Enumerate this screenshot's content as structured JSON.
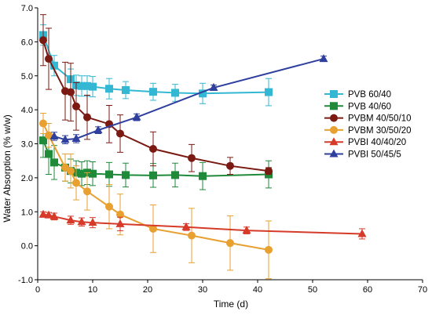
{
  "chart_data": {
    "type": "line",
    "xlabel": "Time  (d)",
    "ylabel": "Water Absorption (% w/w)",
    "xlim": [
      0,
      70
    ],
    "ylim": [
      -1.0,
      7.0
    ],
    "xticks": [
      "0",
      "10",
      "20",
      "30",
      "40",
      "50",
      "60",
      "70"
    ],
    "yticks": [
      "-1.0",
      "0.0",
      "1.0",
      "2.0",
      "3.0",
      "4.0",
      "5.0",
      "6.0",
      "7.0"
    ],
    "grid": false,
    "legend_position": "right",
    "series": [
      {
        "name": "PVB 60/40",
        "color": "#33b7d2",
        "marker": "square",
        "points": [
          {
            "x": 1,
            "y": 6.2,
            "err": 0.3
          },
          {
            "x": 3,
            "y": 5.3,
            "err": 0.3
          },
          {
            "x": 6,
            "y": 4.9,
            "err": 0.3
          },
          {
            "x": 7,
            "y": 4.72,
            "err": 0.3
          },
          {
            "x": 8,
            "y": 4.7,
            "err": 0.3
          },
          {
            "x": 9,
            "y": 4.7,
            "err": 0.3
          },
          {
            "x": 10,
            "y": 4.68,
            "err": 0.3
          },
          {
            "x": 13,
            "y": 4.62,
            "err": 0.3
          },
          {
            "x": 16,
            "y": 4.58,
            "err": 0.25
          },
          {
            "x": 21,
            "y": 4.53,
            "err": 0.25
          },
          {
            "x": 25,
            "y": 4.5,
            "err": 0.25
          },
          {
            "x": 30,
            "y": 4.48,
            "err": 0.3
          },
          {
            "x": 42,
            "y": 4.52,
            "err": 0.4
          }
        ]
      },
      {
        "name": "PVB 40/60",
        "color": "#1e8a3a",
        "marker": "square",
        "points": [
          {
            "x": 1,
            "y": 3.1,
            "err": 0.5
          },
          {
            "x": 2,
            "y": 2.7,
            "err": 0.6
          },
          {
            "x": 3,
            "y": 2.45,
            "err": 0.5
          },
          {
            "x": 5,
            "y": 2.3,
            "err": 0.4
          },
          {
            "x": 6,
            "y": 2.2,
            "err": 0.35
          },
          {
            "x": 7,
            "y": 2.15,
            "err": 0.35
          },
          {
            "x": 8,
            "y": 2.12,
            "err": 0.35
          },
          {
            "x": 9,
            "y": 2.15,
            "err": 0.35
          },
          {
            "x": 10,
            "y": 2.12,
            "err": 0.35
          },
          {
            "x": 13,
            "y": 2.1,
            "err": 0.35
          },
          {
            "x": 16,
            "y": 2.08,
            "err": 0.35
          },
          {
            "x": 21,
            "y": 2.07,
            "err": 0.35
          },
          {
            "x": 25,
            "y": 2.08,
            "err": 0.35
          },
          {
            "x": 30,
            "y": 2.05,
            "err": 0.4
          },
          {
            "x": 42,
            "y": 2.1,
            "err": 0.4
          }
        ]
      },
      {
        "name": "PVBM 40/50/10",
        "color": "#7a1a12",
        "marker": "circle",
        "points": [
          {
            "x": 1,
            "y": 6.05,
            "err": 0.75
          },
          {
            "x": 2,
            "y": 5.5,
            "err": 0.9
          },
          {
            "x": 5,
            "y": 4.55,
            "err": 0.85
          },
          {
            "x": 6,
            "y": 4.52,
            "err": 0.85
          },
          {
            "x": 7,
            "y": 4.1,
            "err": 0.7
          },
          {
            "x": 9,
            "y": 3.78,
            "err": 0.65
          },
          {
            "x": 13,
            "y": 3.58,
            "err": 0.55
          },
          {
            "x": 15,
            "y": 3.3,
            "err": 0.55
          },
          {
            "x": 21,
            "y": 2.85,
            "err": 0.5
          },
          {
            "x": 28,
            "y": 2.58,
            "err": 0.4
          },
          {
            "x": 35,
            "y": 2.35,
            "err": 0.25
          },
          {
            "x": 42,
            "y": 2.2,
            "err": 0.1
          }
        ]
      },
      {
        "name": "PVBM 30/50/20",
        "color": "#e8a030",
        "marker": "circle",
        "points": [
          {
            "x": 1,
            "y": 3.6,
            "err": 0.3
          },
          {
            "x": 2,
            "y": 3.25,
            "err": 0.35
          },
          {
            "x": 5,
            "y": 2.3,
            "err": 0.4
          },
          {
            "x": 6,
            "y": 2.2,
            "err": 0.5
          },
          {
            "x": 7,
            "y": 1.85,
            "err": 0.5
          },
          {
            "x": 9,
            "y": 1.6,
            "err": 0.55
          },
          {
            "x": 13,
            "y": 1.15,
            "err": 0.65
          },
          {
            "x": 15,
            "y": 0.92,
            "err": 0.6
          },
          {
            "x": 21,
            "y": 0.5,
            "err": 0.7
          },
          {
            "x": 28,
            "y": 0.3,
            "err": 0.8
          },
          {
            "x": 35,
            "y": 0.08,
            "err": 0.8
          },
          {
            "x": 42,
            "y": -0.12,
            "err": 0.85
          }
        ]
      },
      {
        "name": "PVBI 40/40/20",
        "color": "#d63a28",
        "marker": "triangle",
        "points": [
          {
            "x": 1,
            "y": 0.92,
            "err": 0.08
          },
          {
            "x": 2,
            "y": 0.9,
            "err": 0.08
          },
          {
            "x": 3,
            "y": 0.86,
            "err": 0.1
          },
          {
            "x": 6,
            "y": 0.75,
            "err": 0.12
          },
          {
            "x": 8,
            "y": 0.7,
            "err": 0.12
          },
          {
            "x": 10,
            "y": 0.68,
            "err": 0.15
          },
          {
            "x": 15,
            "y": 0.64,
            "err": 0.2
          },
          {
            "x": 27,
            "y": 0.55,
            "err": 0.1
          },
          {
            "x": 38,
            "y": 0.45,
            "err": 0.1
          },
          {
            "x": 59,
            "y": 0.35,
            "err": 0.15
          }
        ]
      },
      {
        "name": "PVBI 50/45/5",
        "color": "#2f3f9e",
        "marker": "triangle",
        "points": [
          {
            "x": 3,
            "y": 3.22,
            "err": 0.12
          },
          {
            "x": 5,
            "y": 3.12,
            "err": 0.12
          },
          {
            "x": 7,
            "y": 3.15,
            "err": 0.12
          },
          {
            "x": 11,
            "y": 3.4,
            "err": 0.1
          },
          {
            "x": 18,
            "y": 3.78,
            "err": 0.1
          },
          {
            "x": 32,
            "y": 4.65,
            "err": 0.08
          },
          {
            "x": 52,
            "y": 5.5,
            "err": 0.08
          }
        ]
      }
    ]
  }
}
